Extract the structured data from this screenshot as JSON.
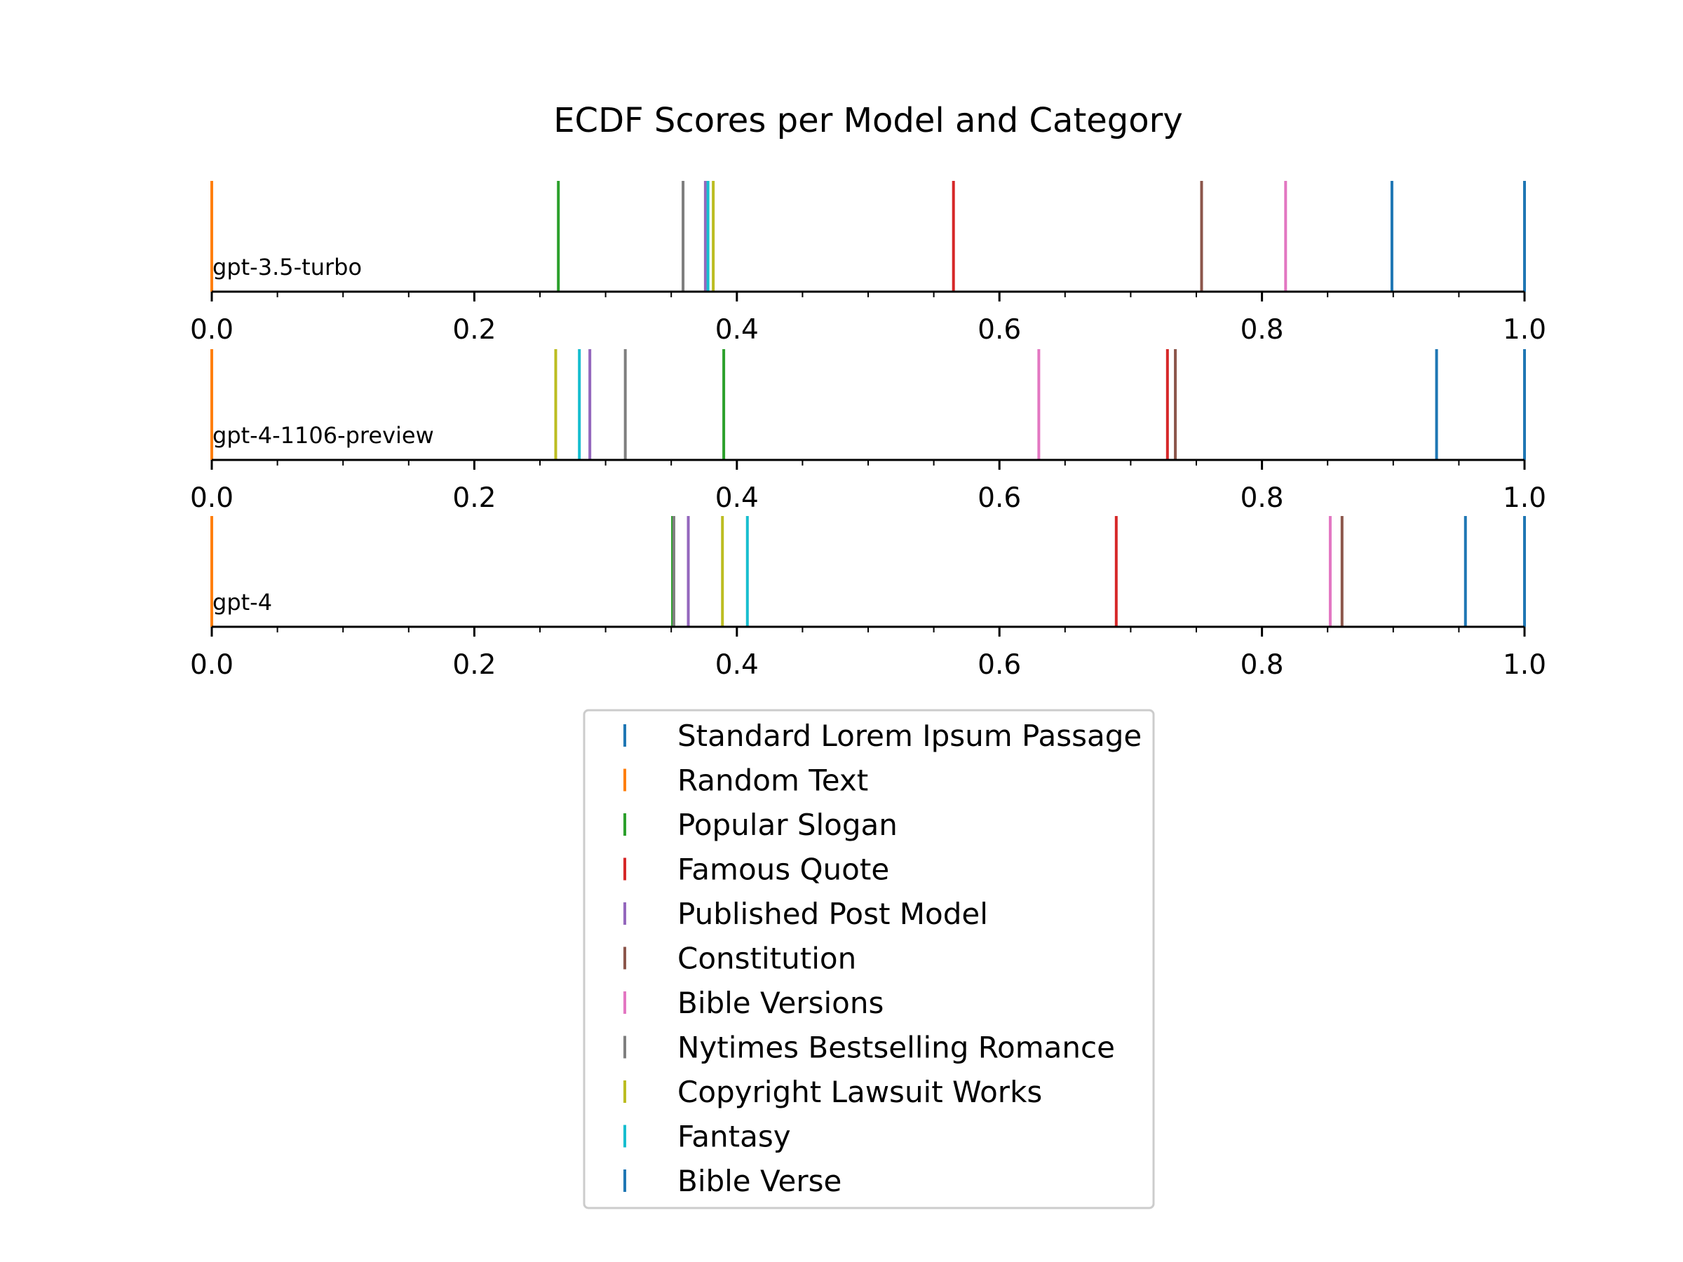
{
  "chart_data": {
    "type": "strip",
    "title": "ECDF Scores per Model and Category",
    "xlim": [
      0.0,
      1.0
    ],
    "x_ticks": [
      0.0,
      0.2,
      0.4,
      0.6,
      0.8,
      1.0
    ],
    "x_tick_labels": [
      "0.0",
      "0.2",
      "0.4",
      "0.6",
      "0.8",
      "1.0"
    ],
    "legend_position": "bottom-center",
    "categories": [
      {
        "name": "Standard Lorem Ipsum Passage",
        "color": "#1f77b4"
      },
      {
        "name": "Random Text",
        "color": "#ff7f0e"
      },
      {
        "name": "Popular Slogan",
        "color": "#2ca02c"
      },
      {
        "name": "Famous Quote",
        "color": "#d62728"
      },
      {
        "name": "Published Post Model",
        "color": "#9467bd"
      },
      {
        "name": "Constitution",
        "color": "#8c564b"
      },
      {
        "name": "Bible Versions",
        "color": "#e377c2"
      },
      {
        "name": "Nytimes Bestselling Romance",
        "color": "#7f7f7f"
      },
      {
        "name": "Copyright Lawsuit Works",
        "color": "#bcbd22"
      },
      {
        "name": "Fantasy",
        "color": "#17becf"
      },
      {
        "name": "Bible Verse",
        "color": "#1f77b4"
      }
    ],
    "series": [
      {
        "name": "gpt-3.5-turbo",
        "values": [
          1.0,
          0.0,
          0.264,
          0.565,
          0.376,
          0.754,
          0.818,
          0.359,
          0.382,
          0.378,
          0.899
        ]
      },
      {
        "name": "gpt-4-1106-preview",
        "values": [
          1.0,
          0.0,
          0.39,
          0.728,
          0.288,
          0.734,
          0.63,
          0.315,
          0.262,
          0.28,
          0.933
        ]
      },
      {
        "name": "gpt-4",
        "values": [
          1.0,
          0.0,
          0.351,
          0.689,
          0.363,
          0.861,
          0.852,
          0.352,
          0.389,
          0.408,
          0.955
        ]
      }
    ]
  }
}
